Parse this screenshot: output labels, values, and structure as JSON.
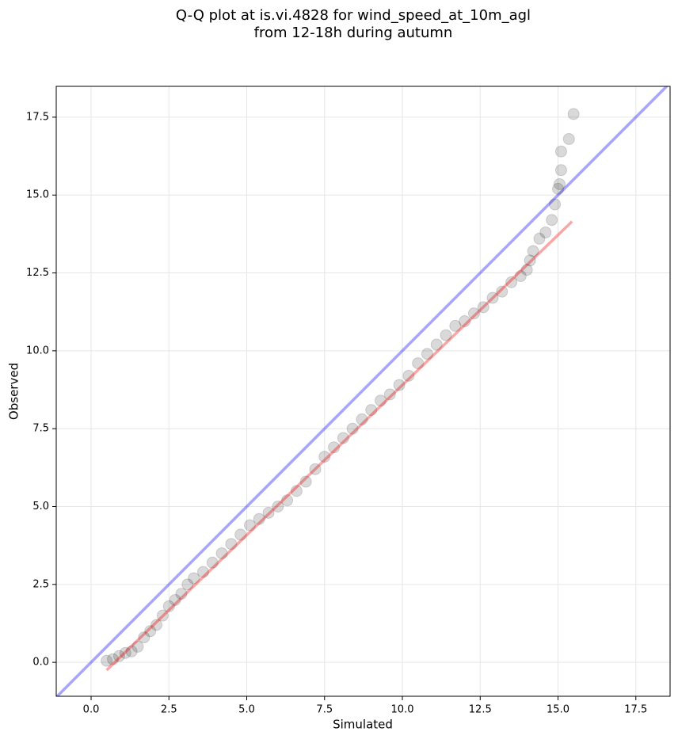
{
  "chart_data": {
    "type": "scatter",
    "title": [
      "Q-Q plot at is.vi.4828 for wind_speed_at_10m_agl",
      "from 12-18h during autumn"
    ],
    "xlabel": "Simulated",
    "ylabel": "Observed",
    "xlim": [
      -1.12,
      18.6
    ],
    "ylim": [
      -1.09,
      18.49
    ],
    "xticks": [
      {
        "value": 0,
        "label": "0.0"
      },
      2.5,
      {
        "value": 5,
        "label": "5.0"
      },
      7.5,
      {
        "value": 10,
        "label": "10.0"
      },
      12.5,
      {
        "value": 15,
        "label": "15.0"
      },
      17.5
    ],
    "yticks": [
      {
        "value": 0,
        "label": "0.0"
      },
      2.5,
      {
        "value": 5,
        "label": "5.0"
      },
      7.5,
      {
        "value": 10,
        "label": "10.0"
      },
      12.5,
      {
        "value": 15,
        "label": "15.0"
      },
      17.5
    ],
    "grid": true,
    "series": [
      {
        "color": "#000000",
        "x": [
          0.5,
          0.7,
          0.9,
          1.1,
          1.3,
          1.5,
          1.7,
          1.9,
          2.1,
          2.3,
          2.5,
          2.7,
          2.9,
          3.1,
          3.3,
          3.6,
          3.9,
          4.2,
          4.5,
          4.8,
          5.1,
          5.4,
          5.7,
          6.0,
          6.3,
          6.6,
          6.9,
          7.2,
          7.5,
          7.8,
          8.1,
          8.4,
          8.7,
          9.0,
          9.3,
          9.6,
          9.9,
          10.2,
          10.5,
          10.8,
          11.1,
          11.4,
          11.7,
          12.0,
          12.3,
          12.6,
          12.9,
          13.2,
          13.5,
          13.8,
          14.0,
          14.1,
          14.2,
          14.4,
          14.6,
          14.8,
          14.9,
          15.0,
          15.05,
          15.1,
          15.1,
          15.35,
          15.5
        ],
        "values": [
          0.05,
          0.1,
          0.2,
          0.3,
          0.35,
          0.5,
          0.8,
          1.0,
          1.2,
          1.5,
          1.8,
          2.0,
          2.2,
          2.5,
          2.7,
          2.9,
          3.2,
          3.5,
          3.8,
          4.1,
          4.4,
          4.6,
          4.8,
          5.0,
          5.2,
          5.5,
          5.8,
          6.2,
          6.6,
          6.9,
          7.2,
          7.5,
          7.8,
          8.1,
          8.4,
          8.6,
          8.9,
          9.2,
          9.6,
          9.9,
          10.2,
          10.5,
          10.8,
          10.95,
          11.2,
          11.4,
          11.7,
          11.9,
          12.2,
          12.4,
          12.6,
          12.9,
          13.2,
          13.6,
          13.8,
          14.2,
          14.7,
          15.2,
          15.35,
          15.8,
          16.4,
          16.8,
          17.6
        ]
      }
    ],
    "reference_line": {
      "color": "#0000ee",
      "x": [
        -1.12,
        18.6
      ],
      "y": [
        -1.12,
        18.6
      ]
    },
    "fit_line": {
      "color": "#ee0000",
      "x": [
        0.5,
        15.45
      ],
      "y": [
        -0.25,
        14.15
      ]
    }
  }
}
